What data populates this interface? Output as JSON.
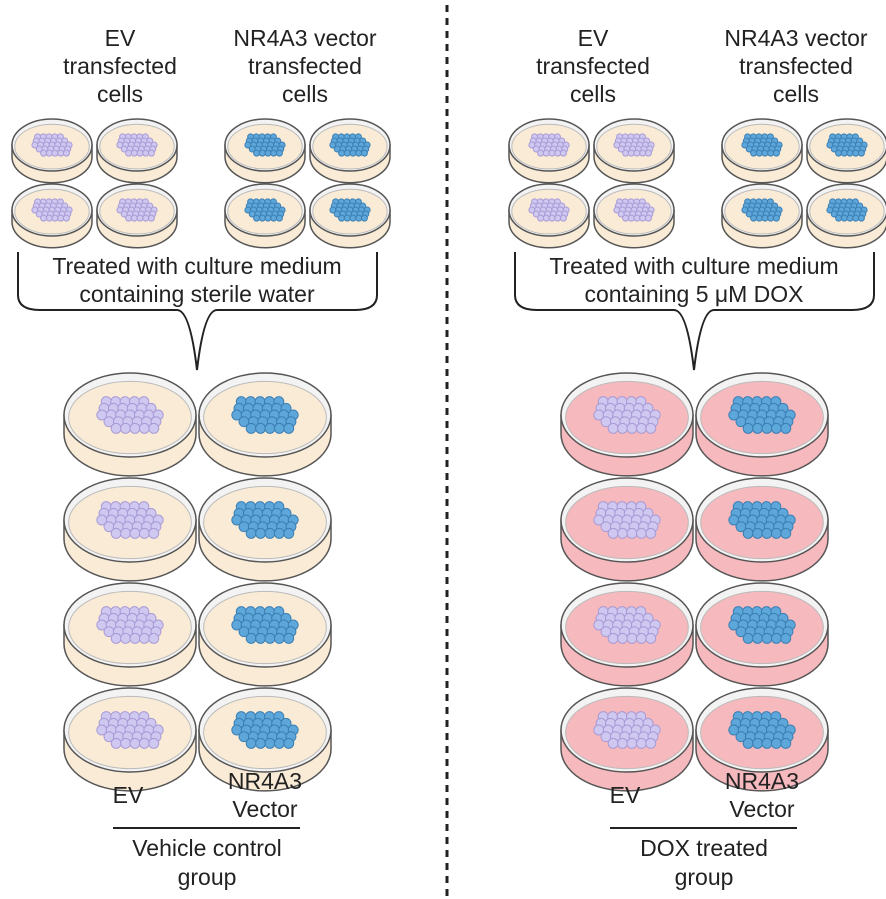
{
  "panels": [
    {
      "top_labels": [
        [
          "EV",
          "transfected",
          "cells"
        ],
        [
          "NR4A3 vector",
          "transfected",
          "cells"
        ]
      ],
      "treatment": [
        "Treated with culture medium",
        "containing sterile water"
      ],
      "bottom_labels": [
        [
          "EV"
        ],
        [
          "NR4A3",
          "Vector"
        ]
      ],
      "group": [
        "Vehicle control",
        "group"
      ]
    },
    {
      "top_labels": [
        [
          "EV",
          "transfected",
          "cells"
        ],
        [
          "NR4A3 vector",
          "transfected",
          "cells"
        ]
      ],
      "treatment": [
        "Treated with culture medium",
        "containing 5 μM DOX"
      ],
      "bottom_labels": [
        [
          "EV"
        ],
        [
          "NR4A3",
          "Vector"
        ]
      ],
      "group": [
        "DOX treated",
        "group"
      ]
    }
  ]
}
